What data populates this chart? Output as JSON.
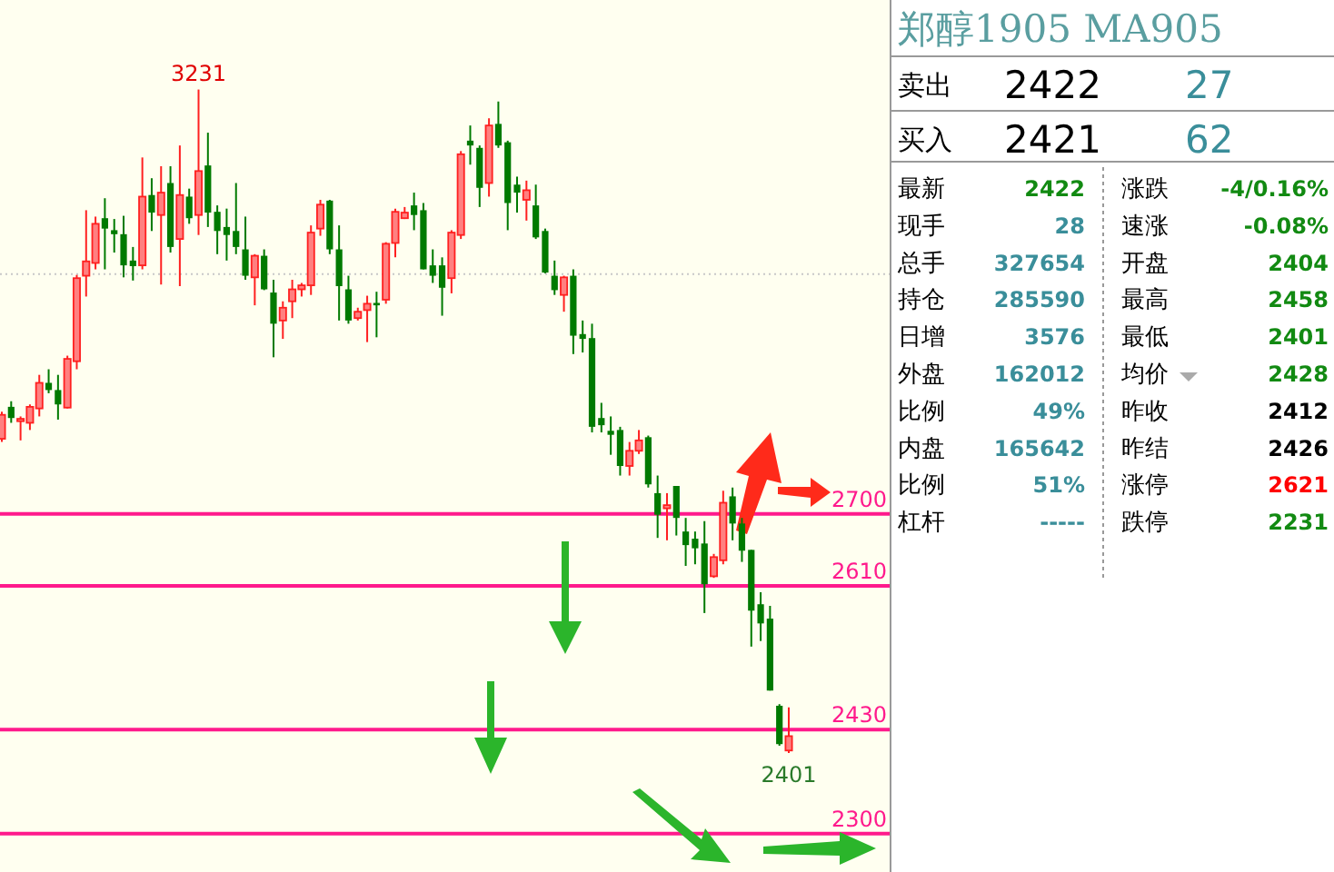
{
  "chart_data": [
    {
      "type": "candlestick",
      "categories": [
        null,
        null,
        null,
        null,
        null,
        null,
        null,
        null,
        null,
        null,
        null,
        null,
        null,
        null,
        null,
        null,
        null,
        null,
        null,
        null,
        null,
        null,
        null,
        null,
        null,
        null,
        null,
        null,
        null,
        null,
        null,
        null,
        null,
        null,
        null,
        null,
        null,
        null,
        null,
        null,
        null,
        null,
        null,
        null,
        null,
        null,
        null,
        null,
        null,
        null,
        null,
        null,
        null,
        null,
        null,
        null,
        null,
        null,
        null,
        null,
        null,
        null,
        null,
        null,
        null,
        null,
        null,
        null,
        null,
        null,
        null,
        null,
        null,
        null,
        null,
        null,
        null,
        null,
        null,
        null,
        null,
        null,
        null,
        null,
        null
      ],
      "ohlc": [
        [
          2794,
          2828,
          2790,
          2824
        ],
        [
          2834,
          2841,
          2814,
          2820
        ],
        [
          2816,
          2822,
          2792,
          2819
        ],
        [
          2814,
          2837,
          2805,
          2834
        ],
        [
          2832,
          2874,
          2822,
          2864
        ],
        [
          2864,
          2881,
          2851,
          2855
        ],
        [
          2855,
          2874,
          2818,
          2837
        ],
        [
          2833,
          2898,
          2832,
          2894
        ],
        [
          2891,
          2999,
          2881,
          2995
        ],
        [
          2998,
          3080,
          2972,
          3016
        ],
        [
          3014,
          3072,
          3006,
          3063
        ],
        [
          3070,
          3095,
          3006,
          3057
        ],
        [
          3055,
          3069,
          3027,
          3050
        ],
        [
          3050,
          3073,
          2996,
          3011
        ],
        [
          3017,
          3034,
          2992,
          3010
        ],
        [
          3011,
          3146,
          3006,
          3097
        ],
        [
          3099,
          3120,
          3054,
          3077
        ],
        [
          3074,
          3135,
          2987,
          3102
        ],
        [
          3114,
          3135,
          3027,
          3034
        ],
        [
          3044,
          3161,
          2985,
          3099
        ],
        [
          3097,
          3107,
          3063,
          3070
        ],
        [
          3074,
          3231,
          3049,
          3129
        ],
        [
          3136,
          3177,
          3059,
          3077
        ],
        [
          3078,
          3086,
          3025,
          3054
        ],
        [
          3059,
          3082,
          3017,
          3049
        ],
        [
          3054,
          3114,
          3025,
          3034
        ],
        [
          3031,
          3072,
          2993,
          2998
        ],
        [
          2996,
          3025,
          2961,
          3023
        ],
        [
          3023,
          3031,
          2980,
          2981
        ],
        [
          2977,
          2993,
          2896,
          2938
        ],
        [
          2942,
          2966,
          2919,
          2958
        ],
        [
          2966,
          2993,
          2945,
          2981
        ],
        [
          2981,
          2989,
          2972,
          2986
        ],
        [
          2986,
          3061,
          2974,
          3052
        ],
        [
          3057,
          3093,
          3048,
          3087
        ],
        [
          3092,
          3093,
          3025,
          3031
        ],
        [
          3031,
          3061,
          2942,
          2985
        ],
        [
          2981,
          2998,
          2938,
          2942
        ],
        [
          2945,
          2958,
          2942,
          2953
        ],
        [
          2955,
          2973,
          2915,
          2963
        ],
        [
          2964,
          2978,
          2921,
          2961
        ],
        [
          2968,
          3040,
          2963,
          3038
        ],
        [
          3039,
          3082,
          3021,
          3078
        ],
        [
          3070,
          3084,
          3069,
          3077
        ],
        [
          3086,
          3102,
          3055,
          3074
        ],
        [
          3080,
          3089,
          3006,
          3006
        ],
        [
          3011,
          3031,
          2989,
          2998
        ],
        [
          3011,
          3021,
          2948,
          2983
        ],
        [
          2995,
          3055,
          2976,
          3052
        ],
        [
          3049,
          3154,
          3044,
          3150
        ],
        [
          3167,
          3186,
          3137,
          3161
        ],
        [
          3158,
          3161,
          3084,
          3108
        ],
        [
          3114,
          3195,
          3097,
          3186
        ],
        [
          3188,
          3216,
          3158,
          3161
        ],
        [
          3165,
          3167,
          3055,
          3089
        ],
        [
          3112,
          3122,
          3077,
          3102
        ],
        [
          3093,
          3117,
          3067,
          3105
        ],
        [
          3086,
          3112,
          3044,
          3046
        ],
        [
          3054,
          3057,
          3001,
          3002
        ],
        [
          2998,
          3017,
          2974,
          2980
        ],
        [
          2974,
          2998,
          2953,
          2996
        ],
        [
          2998,
          3006,
          2900,
          2923
        ],
        [
          2925,
          2942,
          2902,
          2919
        ],
        [
          2920,
          2938,
          2802,
          2809
        ],
        [
          2820,
          2839,
          2802,
          2811
        ],
        [
          2804,
          2822,
          2774,
          2799
        ],
        [
          2805,
          2809,
          2748,
          2760
        ],
        [
          2760,
          2790,
          2748,
          2779
        ],
        [
          2779,
          2805,
          2775,
          2792
        ],
        [
          2796,
          2798,
          2733,
          2737
        ],
        [
          2726,
          2748,
          2670,
          2699
        ],
        [
          2707,
          2726,
          2667,
          2711
        ],
        [
          2735,
          2735,
          2673,
          2695
        ],
        [
          2678,
          2695,
          2635,
          2661
        ],
        [
          2669,
          2678,
          2637,
          2657
        ],
        [
          2663,
          2691,
          2576,
          2612
        ],
        [
          2622,
          2650,
          2620,
          2646
        ],
        [
          2642,
          2729,
          2637,
          2714
        ],
        [
          2722,
          2733,
          2667,
          2688
        ],
        [
          2688,
          2695,
          2640,
          2654
        ],
        [
          2655,
          2655,
          2534,
          2579
        ],
        [
          2587,
          2602,
          2541,
          2563
        ],
        [
          2569,
          2585,
          2479,
          2479
        ],
        [
          2460,
          2462,
          2410,
          2412
        ],
        [
          2404,
          2458,
          2401,
          2422
        ]
      ],
      "ylim": [
        2252,
        3343
      ],
      "ref_lines": [
        {
          "axis": "y",
          "value": 3000,
          "color": "#c8c8c8",
          "line_style": "dotted"
        },
        {
          "axis": "y",
          "value": 2700,
          "label": "2700",
          "color": "#ff1a8c",
          "line_style": "solid"
        },
        {
          "axis": "y",
          "value": 2610,
          "label": "2610",
          "color": "#ff1a8c",
          "line_style": "solid"
        },
        {
          "axis": "y",
          "value": 2430,
          "label": "2430",
          "color": "#ff1a8c",
          "line_style": "solid"
        },
        {
          "axis": "y",
          "value": 2300,
          "label": "2300",
          "color": "#ff1a8c",
          "line_style": "solid"
        }
      ],
      "annotations": [
        {
          "text": "3231",
          "y": 3231
        },
        {
          "text": "2401",
          "y": 2401
        }
      ]
    },
    {
      "type": "other",
      "title": "郑醇1905  MA905",
      "annotations": [
        "卖出",
        "2422",
        "27",
        "买入",
        "2421",
        "62",
        "最新",
        "2422",
        "涨跌",
        "-4/0.16%",
        "现手",
        "28",
        "速涨",
        "-0.08%",
        "总手",
        "327654",
        "开盘",
        "2404",
        "持仓",
        "285590",
        "最高",
        "2458",
        "日增",
        "3576",
        "最低",
        "2401",
        "外盘",
        "162012",
        "均价",
        "2428",
        "比例",
        "49%",
        "昨收",
        "2412",
        "内盘",
        "165642",
        "昨结",
        "2426",
        "比例",
        "51%",
        "涨停",
        "2621",
        "杠杆",
        "-----",
        "跌停",
        "2231"
      ]
    }
  ]
}
